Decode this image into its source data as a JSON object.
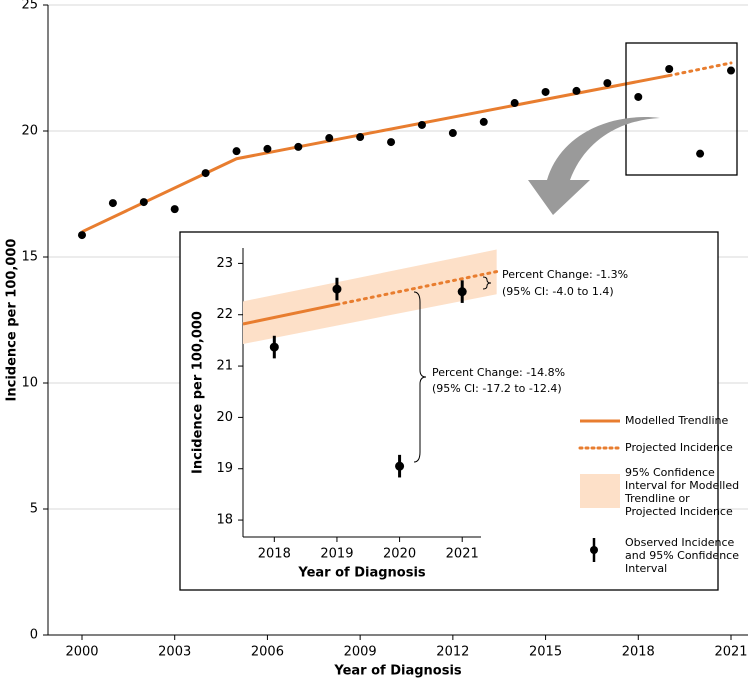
{
  "chart_data": [
    {
      "type": "scatter",
      "xlabel": "Year of Diagnosis",
      "ylabel": "Incidence per 100,000",
      "xlim": [
        1998.9,
        2021.55
      ],
      "ylim": [
        0,
        25
      ],
      "xticks": [
        2000,
        2003,
        2006,
        2009,
        2012,
        2015,
        2018,
        2021
      ],
      "yticks": [
        0,
        5,
        10,
        15,
        20,
        25
      ],
      "grid": true,
      "series": [
        {
          "style": "line",
          "color": "#e87d2f",
          "x": [
            2000,
            2005,
            2019
          ],
          "values": [
            16.0,
            18.9,
            22.2
          ]
        },
        {
          "style": "dotted",
          "color": "#e87d2f",
          "x": [
            2019,
            2021
          ],
          "values": [
            22.2,
            22.7
          ]
        },
        {
          "style": "points",
          "color": "#000000",
          "x": [
            2000,
            2001,
            2002,
            2003,
            2004,
            2005,
            2006,
            2007,
            2008,
            2009,
            2010,
            2011,
            2012,
            2013,
            2014,
            2015,
            2016,
            2017,
            2018,
            2019,
            2020,
            2021
          ],
          "values": [
            15.87,
            17.14,
            17.18,
            16.9,
            18.33,
            19.2,
            19.29,
            19.37,
            19.72,
            19.76,
            19.56,
            20.24,
            19.92,
            20.36,
            21.11,
            21.55,
            21.59,
            21.9,
            21.35,
            22.46,
            19.1,
            22.4
          ]
        }
      ]
    },
    {
      "type": "scatter",
      "xlabel": "Year of Diagnosis",
      "ylabel": "Incidence per 100,000",
      "xlim": [
        2017.5,
        2021.3
      ],
      "ylim": [
        17.67,
        23.3
      ],
      "xticks": [
        2018,
        2019,
        2020,
        2021
      ],
      "yticks": [
        18,
        19,
        20,
        21,
        22,
        23
      ],
      "series": [
        {
          "name": "Modelled Trendline",
          "style": "line",
          "color": "#e87d2f",
          "x": [
            2017.5,
            2019
          ],
          "values": [
            21.82,
            22.2
          ]
        },
        {
          "name": "Projected Incidence",
          "style": "dotted",
          "color": "#e87d2f",
          "x": [
            2019,
            2021.55
          ],
          "values": [
            22.2,
            22.84
          ]
        },
        {
          "name": "95% Confidence Interval for Modelled Trendline or Projected Incidence",
          "style": "band",
          "color": "#fde0c8",
          "x": [
            2017.5,
            2021.55
          ],
          "lower": [
            21.43,
            22.4
          ],
          "upper": [
            22.26,
            23.27
          ]
        },
        {
          "name": "Observed Incidence and 95% Confidence Interval",
          "style": "errorpoints",
          "color": "#000000",
          "x": [
            2018,
            2019,
            2020,
            2021
          ],
          "values": [
            21.37,
            22.5,
            19.05,
            22.45
          ],
          "errors": [
            0.22,
            0.22,
            0.22,
            0.22
          ]
        }
      ],
      "annotations": [
        {
          "line1": "Percent Change: -1.3%",
          "line2": "(95% CI: -4.0 to 1.4)"
        },
        {
          "line1": "Percent Change: -14.8%",
          "line2": "(95% CI: -17.2 to -12.4)"
        }
      ]
    }
  ]
}
